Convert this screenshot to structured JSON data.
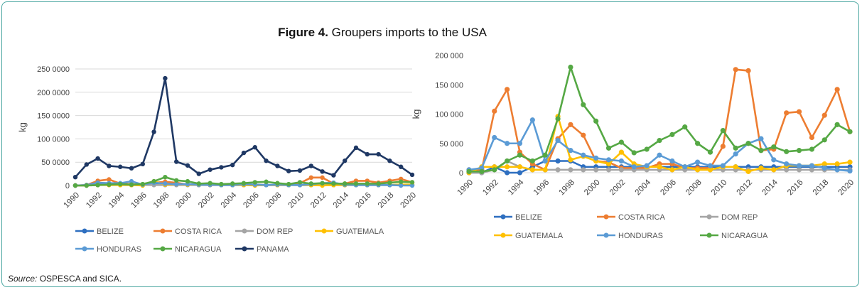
{
  "figure": {
    "label": "Figure 4.",
    "title": " Groupers imports to the USA"
  },
  "source": {
    "label": "Source:",
    "text": " OSPESCA and SICA."
  },
  "chart_data": [
    {
      "type": "line",
      "ylabel": "kg",
      "ylim": [
        0,
        2500000
      ],
      "yticks": [
        0,
        500000,
        1000000,
        1500000,
        2000000,
        2500000
      ],
      "ytick_labels": [
        "0",
        "50 0000",
        "100 0000",
        "150 0000",
        "200 0000",
        "250 0000"
      ],
      "x": [
        1990,
        1991,
        1992,
        1993,
        1994,
        1995,
        1996,
        1997,
        1998,
        1999,
        2000,
        2001,
        2002,
        2003,
        2004,
        2005,
        2006,
        2007,
        2008,
        2009,
        2010,
        2011,
        2012,
        2013,
        2014,
        2015,
        2016,
        2017,
        2018,
        2019,
        2020
      ],
      "xtick_labels": [
        "1990",
        "1992",
        "1994",
        "1996",
        "1998",
        "2000",
        "2002",
        "2004",
        "2006",
        "2008",
        "2010",
        "2012",
        "2014",
        "2016",
        "2018",
        "2020"
      ],
      "grid": true,
      "legend": "bottom",
      "series": [
        {
          "name": "BELIZE",
          "color": "#2e6fc0",
          "values": [
            0,
            0,
            20000,
            30000,
            20000,
            10000,
            20000,
            30000,
            30000,
            20000,
            20000,
            10000,
            10000,
            10000,
            10000,
            10000,
            10000,
            10000,
            10000,
            10000,
            10000,
            10000,
            10000,
            10000,
            10000,
            10000,
            10000,
            10000,
            10000,
            10000,
            10000
          ]
        },
        {
          "name": "COSTA RICA",
          "color": "#ed7d31",
          "values": [
            0,
            10000,
            100000,
            130000,
            40000,
            30000,
            10000,
            60000,
            80000,
            60000,
            20000,
            20000,
            10000,
            10000,
            10000,
            20000,
            20000,
            10000,
            10000,
            10000,
            50000,
            170000,
            170000,
            40000,
            40000,
            100000,
            100000,
            60000,
            100000,
            140000,
            70000
          ]
        },
        {
          "name": "DOM REP",
          "color": "#a5a5a5",
          "values": [
            0,
            0,
            10000,
            20000,
            10000,
            10000,
            10000,
            10000,
            10000,
            10000,
            10000,
            10000,
            10000,
            10000,
            10000,
            10000,
            10000,
            10000,
            10000,
            10000,
            10000,
            10000,
            10000,
            10000,
            10000,
            10000,
            10000,
            10000,
            10000,
            10000,
            10000
          ]
        },
        {
          "name": "GUATEMALA",
          "color": "#ffc000",
          "values": [
            0,
            0,
            10000,
            10000,
            10000,
            10000,
            0,
            90000,
            20000,
            30000,
            20000,
            20000,
            30000,
            10000,
            10000,
            10000,
            0,
            10000,
            10000,
            10000,
            10000,
            10000,
            0,
            10000,
            10000,
            10000,
            10000,
            10000,
            10000,
            20000,
            20000
          ]
        },
        {
          "name": "HONDURAS",
          "color": "#5b9bd5",
          "values": [
            0,
            10000,
            60000,
            50000,
            50000,
            90000,
            20000,
            60000,
            40000,
            30000,
            30000,
            20000,
            20000,
            10000,
            10000,
            30000,
            20000,
            10000,
            20000,
            10000,
            10000,
            30000,
            50000,
            60000,
            20000,
            10000,
            10000,
            10000,
            10000,
            0,
            0
          ]
        },
        {
          "name": "NICARAGUA",
          "color": "#55a844",
          "values": [
            0,
            0,
            10000,
            20000,
            30000,
            20000,
            30000,
            90000,
            180000,
            110000,
            90000,
            40000,
            50000,
            30000,
            40000,
            50000,
            70000,
            80000,
            50000,
            30000,
            70000,
            40000,
            50000,
            40000,
            40000,
            40000,
            40000,
            40000,
            60000,
            80000,
            70000
          ]
        },
        {
          "name": "PANAMA",
          "color": "#1f3864",
          "values": [
            180000,
            450000,
            580000,
            420000,
            400000,
            370000,
            460000,
            1150000,
            2300000,
            510000,
            430000,
            250000,
            340000,
            390000,
            440000,
            700000,
            820000,
            530000,
            420000,
            310000,
            320000,
            420000,
            300000,
            220000,
            530000,
            810000,
            670000,
            670000,
            530000,
            400000,
            230000
          ]
        }
      ]
    },
    {
      "type": "line",
      "ylabel": "kg",
      "ylim": [
        0,
        200000
      ],
      "yticks": [
        0,
        50000,
        100000,
        150000,
        200000
      ],
      "ytick_labels": [
        "0",
        "50 000",
        "100 000",
        "150 000",
        "200 000"
      ],
      "x": [
        1990,
        1991,
        1992,
        1993,
        1994,
        1995,
        1996,
        1997,
        1998,
        1999,
        2000,
        2001,
        2002,
        2003,
        2004,
        2005,
        2006,
        2007,
        2008,
        2009,
        2010,
        2011,
        2012,
        2013,
        2014,
        2015,
        2016,
        2017,
        2018,
        2019,
        2020
      ],
      "xtick_labels": [
        "1990",
        "1992",
        "1994",
        "1996",
        "1998",
        "2000",
        "2002",
        "2004",
        "2006",
        "2008",
        "2010",
        "2012",
        "2014",
        "2016",
        "2018",
        "2020"
      ],
      "grid": false,
      "legend": "bottom",
      "series": [
        {
          "name": "BELIZE",
          "color": "#2e6fc0",
          "values": [
            0,
            0,
            10000,
            0,
            0,
            10000,
            20000,
            20000,
            20000,
            10000,
            10000,
            10000,
            10000,
            10000,
            10000,
            10000,
            10000,
            10000,
            10000,
            10000,
            10000,
            10000,
            10000,
            10000,
            10000,
            10000,
            10000,
            10000,
            10000,
            10000,
            10000
          ]
        },
        {
          "name": "COSTA RICA",
          "color": "#ed7d31",
          "values": [
            5000,
            5000,
            105000,
            142000,
            35000,
            15000,
            5000,
            58000,
            82000,
            64000,
            20000,
            18000,
            8000,
            8000,
            8000,
            15000,
            15000,
            8000,
            8000,
            8000,
            45000,
            176000,
            174000,
            38000,
            40000,
            102000,
            104000,
            60000,
            98000,
            142000,
            70000
          ]
        },
        {
          "name": "DOM REP",
          "color": "#a5a5a5",
          "values": [
            0,
            0,
            5000,
            20000,
            10000,
            5000,
            5000,
            5000,
            5000,
            5000,
            5000,
            5000,
            5000,
            5000,
            5000,
            5000,
            5000,
            5000,
            5000,
            5000,
            5000,
            5000,
            5000,
            5000,
            5000,
            5000,
            5000,
            5000,
            5000,
            5000,
            5000
          ]
        },
        {
          "name": "GUATEMALA",
          "color": "#ffc000",
          "values": [
            0,
            10000,
            10000,
            10000,
            10000,
            5000,
            5000,
            96000,
            22000,
            28000,
            20000,
            15000,
            35000,
            15000,
            10000,
            10000,
            5000,
            10000,
            5000,
            5000,
            10000,
            10000,
            2000,
            8000,
            5000,
            12000,
            12000,
            12000,
            15000,
            15000,
            18000
          ]
        },
        {
          "name": "HONDURAS",
          "color": "#5b9bd5",
          "values": [
            5000,
            8000,
            60000,
            50000,
            50000,
            90000,
            20000,
            55000,
            38000,
            30000,
            25000,
            22000,
            20000,
            10000,
            12000,
            30000,
            20000,
            10000,
            18000,
            12000,
            12000,
            32000,
            50000,
            58000,
            22000,
            15000,
            12000,
            12000,
            8000,
            5000,
            3000
          ]
        },
        {
          "name": "NICARAGUA",
          "color": "#55a844",
          "values": [
            2000,
            2000,
            5000,
            20000,
            30000,
            20000,
            30000,
            92000,
            180000,
            116000,
            88000,
            42000,
            52000,
            34000,
            40000,
            55000,
            65000,
            78000,
            50000,
            35000,
            72000,
            42000,
            50000,
            38000,
            44000,
            36000,
            38000,
            40000,
            56000,
            82000,
            70000
          ]
        }
      ]
    }
  ]
}
